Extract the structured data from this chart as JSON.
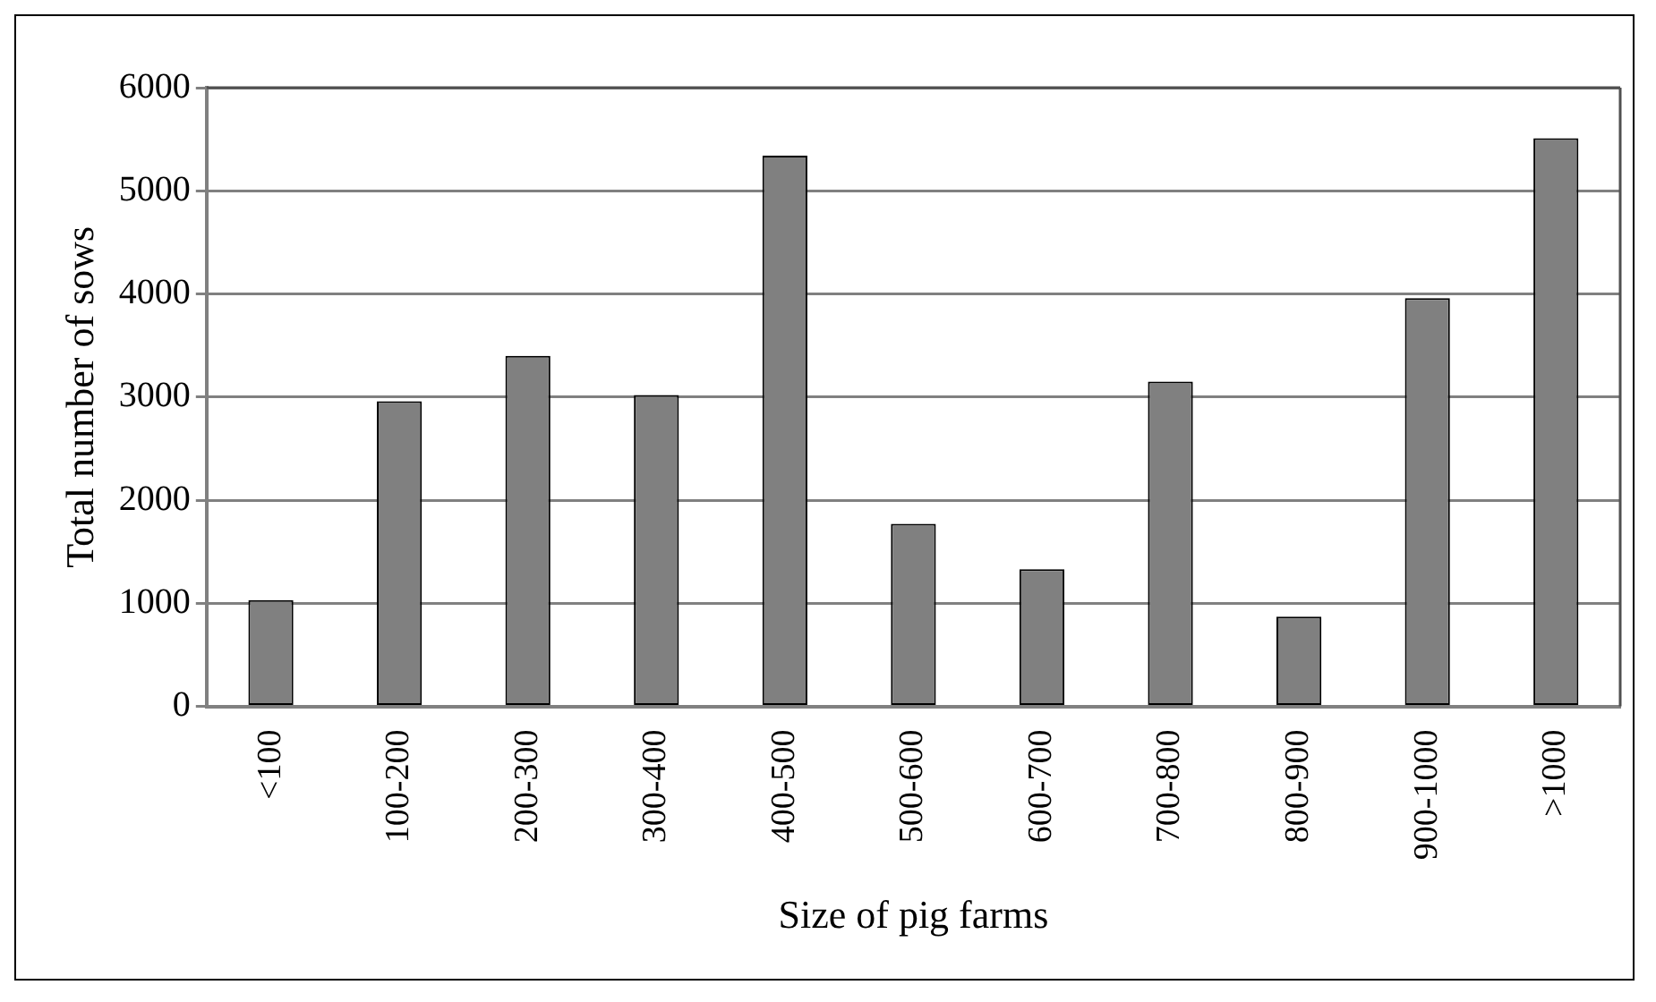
{
  "chart_data": {
    "type": "bar",
    "xlabel": "Size of pig farms",
    "ylabel": "Total number of sows",
    "categories": [
      "<100",
      "100-200",
      "200-300",
      "300-400",
      "400-500",
      "500-600",
      "600-700",
      "700-800",
      "800-900",
      "900-1000",
      ">1000"
    ],
    "values": [
      1030,
      2960,
      3400,
      3020,
      5340,
      1770,
      1330,
      3150,
      870,
      3960,
      5510
    ],
    "color": "#808080",
    "ylim": [
      0,
      6000
    ],
    "yticks": [
      0,
      1000,
      2000,
      3000,
      4000,
      5000,
      6000
    ],
    "grid": "y",
    "legend": false
  }
}
